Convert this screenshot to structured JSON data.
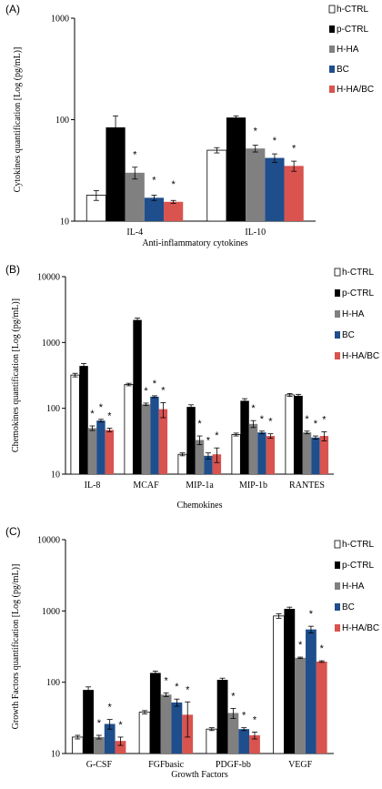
{
  "figure": {
    "panel_labels": [
      "(A)",
      "(B)",
      "(C)"
    ]
  },
  "colors": {
    "h-CTRL": "#ffffff",
    "p-CTRL": "#000000",
    "H-HA": "#808080",
    "BC": "#1f4e8c",
    "H-HA/BC": "#d9534f"
  },
  "chart_data": [
    {
      "type": "bar",
      "panel": "(A)",
      "scale": "log",
      "ylim": [
        10,
        1000
      ],
      "yticks": [
        "10",
        "100",
        "1000"
      ],
      "ylabel": "Cytokines quantification [Log (pg/mL)]",
      "xlabel": "Anti-inflammatory cytokines",
      "legend": "right",
      "categories": [
        "IL-4",
        "IL-10"
      ],
      "series": [
        {
          "name": "h-CTRL",
          "values": [
            18,
            50
          ],
          "errors": [
            2,
            3
          ]
        },
        {
          "name": "p-CTRL",
          "values": [
            84,
            105
          ],
          "errors": [
            25,
            4
          ]
        },
        {
          "name": "H-HA",
          "values": [
            30,
            52
          ],
          "errors": [
            4,
            4
          ]
        },
        {
          "name": "BC",
          "values": [
            17,
            42
          ],
          "errors": [
            1,
            4
          ]
        },
        {
          "name": "H-HA/BC",
          "values": [
            15.5,
            35
          ],
          "errors": [
            0.5,
            4
          ]
        }
      ],
      "significance": [
        [
          "H-HA",
          "BC",
          "H-HA/BC"
        ],
        [
          "H-HA",
          "BC",
          "H-HA/BC"
        ]
      ]
    },
    {
      "type": "bar",
      "panel": "(B)",
      "scale": "log",
      "ylim": [
        10,
        10000
      ],
      "yticks": [
        "10",
        "100",
        "1000",
        "10000"
      ],
      "ylabel": "Chemokines quantification [Log (pg/mL)]",
      "xlabel": "Chemokines",
      "legend": "right",
      "categories": [
        "IL-8",
        "MCAF",
        "MIP-1a",
        "MIP-1b",
        "RANTES"
      ],
      "series": [
        {
          "name": "h-CTRL",
          "values": [
            320,
            230,
            20,
            40,
            160
          ],
          "errors": [
            20,
            10,
            1,
            2,
            8
          ]
        },
        {
          "name": "p-CTRL",
          "values": [
            440,
            2200,
            105,
            130,
            155
          ],
          "errors": [
            40,
            150,
            8,
            10,
            8
          ]
        },
        {
          "name": "H-HA",
          "values": [
            50,
            115,
            33,
            58,
            43
          ],
          "errors": [
            4,
            5,
            5,
            7,
            2
          ]
        },
        {
          "name": "BC",
          "values": [
            65,
            150,
            19,
            43,
            36
          ],
          "errors": [
            3,
            5,
            2,
            2,
            2
          ]
        },
        {
          "name": "H-HA/BC",
          "values": [
            47,
            97,
            20,
            38,
            38
          ],
          "errors": [
            3,
            25,
            5,
            3,
            6
          ]
        }
      ],
      "significance": [
        [
          "H-HA",
          "BC",
          "H-HA/BC"
        ],
        [
          "H-HA",
          "BC",
          "H-HA/BC"
        ],
        [
          "H-HA",
          "BC",
          "H-HA/BC"
        ],
        [
          "H-HA",
          "BC",
          "H-HA/BC"
        ],
        [
          "H-HA",
          "BC",
          "H-HA/BC"
        ]
      ]
    },
    {
      "type": "bar",
      "panel": "(C)",
      "scale": "log",
      "ylim": [
        10,
        10000
      ],
      "yticks": [
        "10",
        "100",
        "1000",
        "10000"
      ],
      "ylabel": "Growth Factors quantification [Log (pg/mL)]",
      "xlabel": "Growth Factors",
      "legend": "right",
      "categories": [
        "G-CSF",
        "FGFbasic",
        "PDGF-bb",
        "VEGF"
      ],
      "series": [
        {
          "name": "h-CTRL",
          "values": [
            17,
            38,
            22,
            850
          ],
          "errors": [
            1,
            2,
            1,
            60
          ]
        },
        {
          "name": "p-CTRL",
          "values": [
            78,
            135,
            108,
            1070
          ],
          "errors": [
            8,
            8,
            6,
            60
          ]
        },
        {
          "name": "H-HA",
          "values": [
            17,
            67,
            37,
            220
          ],
          "errors": [
            1,
            4,
            6,
            5
          ]
        },
        {
          "name": "BC",
          "values": [
            26,
            52,
            22,
            550
          ],
          "errors": [
            4,
            6,
            1,
            60
          ]
        },
        {
          "name": "H-HA/BC",
          "values": [
            15,
            35,
            18,
            195
          ],
          "errors": [
            2,
            18,
            2,
            5
          ]
        }
      ],
      "significance": [
        [
          "H-HA",
          "BC",
          "H-HA/BC"
        ],
        [
          "H-HA",
          "BC",
          "H-HA/BC"
        ],
        [
          "H-HA",
          "BC",
          "H-HA/BC"
        ],
        [
          "H-HA",
          "BC",
          "H-HA/BC"
        ]
      ]
    }
  ]
}
